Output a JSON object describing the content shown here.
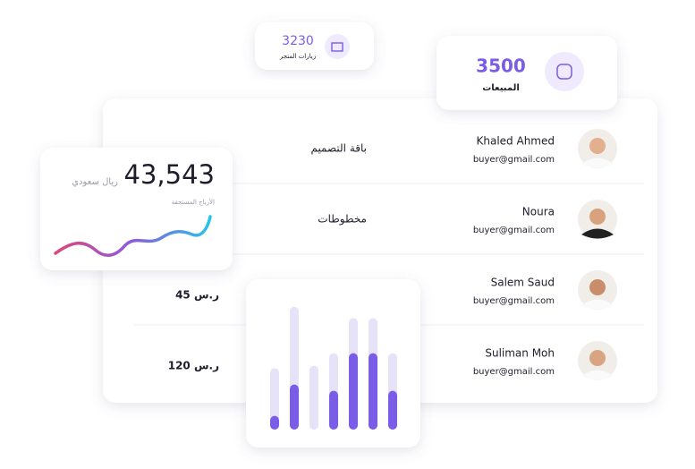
{
  "store_visits": {
    "value": "3230",
    "label": "زيارات المتجر"
  },
  "sales": {
    "value": "3500",
    "label": "المبيعات"
  },
  "earnings": {
    "value": "43,543",
    "currency": "ريال سعودي",
    "label": "الأرباح المستحقة"
  },
  "orders": [
    {
      "name": "Khaled Ahmed",
      "email": "buyer@gmail.com",
      "product": "باقة التصميم"
    },
    {
      "name": "Noura",
      "email": "buyer@gmail.com",
      "product": "مخطوطات"
    },
    {
      "name": "Salem Saud",
      "email": "buyer@gmail.com",
      "price": "45 ر.س"
    },
    {
      "name": "Suliman Moh",
      "email": "buyer@gmail.com",
      "price": "120 ر.س"
    }
  ],
  "chart_data": {
    "type": "bar",
    "ylim": [
      0,
      100
    ],
    "series": [
      {
        "color": "#e6e2f8",
        "values": [
          49,
          98,
          51,
          61,
          89,
          89,
          61
        ]
      },
      {
        "color": "#7b5ce6",
        "values": [
          11,
          36,
          0,
          31,
          61,
          61,
          31
        ]
      }
    ]
  }
}
